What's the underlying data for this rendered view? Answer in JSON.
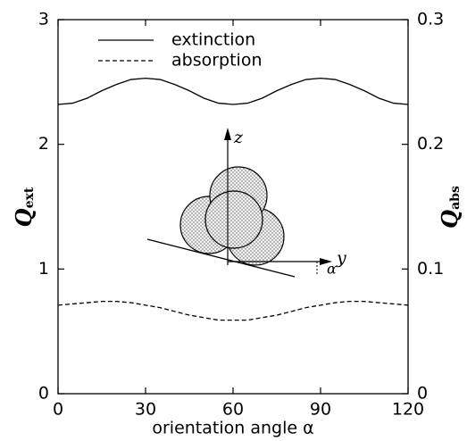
{
  "chart_data": {
    "type": "line",
    "x_label": "orientation angle α",
    "y_label": {
      "symbol": "Q",
      "subscript": "ext"
    },
    "y2_label": {
      "symbol": "Q",
      "subscript": "abs"
    },
    "x": [
      0,
      5,
      10,
      15,
      20,
      25,
      30,
      35,
      40,
      45,
      50,
      55,
      60,
      65,
      70,
      75,
      80,
      85,
      90,
      95,
      100,
      105,
      110,
      115,
      120
    ],
    "series": [
      {
        "name": "extinction",
        "color": "#000000",
        "dash": false,
        "values": [
          2.32,
          2.33,
          2.37,
          2.43,
          2.48,
          2.52,
          2.53,
          2.52,
          2.48,
          2.43,
          2.37,
          2.33,
          2.32,
          2.33,
          2.37,
          2.43,
          2.48,
          2.52,
          2.53,
          2.52,
          2.48,
          2.43,
          2.37,
          2.33,
          2.32
        ]
      },
      {
        "name": "absorption",
        "color": "#000000",
        "dash": true,
        "axis": "y2",
        "values": [
          0.071,
          0.072,
          0.073,
          0.074,
          0.074,
          0.073,
          0.071,
          0.069,
          0.066,
          0.063,
          0.061,
          0.059,
          0.059,
          0.059,
          0.061,
          0.063,
          0.066,
          0.069,
          0.071,
          0.073,
          0.074,
          0.074,
          0.073,
          0.072,
          0.071
        ]
      }
    ],
    "xlim": [
      0,
      120
    ],
    "xticks": [
      0,
      30,
      60,
      90,
      120
    ],
    "ylim": [
      0,
      3
    ],
    "yticks": [
      0,
      1,
      2,
      3
    ],
    "y2lim": [
      0,
      0.3
    ],
    "y2ticks": [
      0,
      0.1,
      0.2,
      0.3
    ],
    "grid": false,
    "legend": "top-left",
    "annotations": {
      "z": "z",
      "y": "y",
      "alpha": "α"
    }
  }
}
